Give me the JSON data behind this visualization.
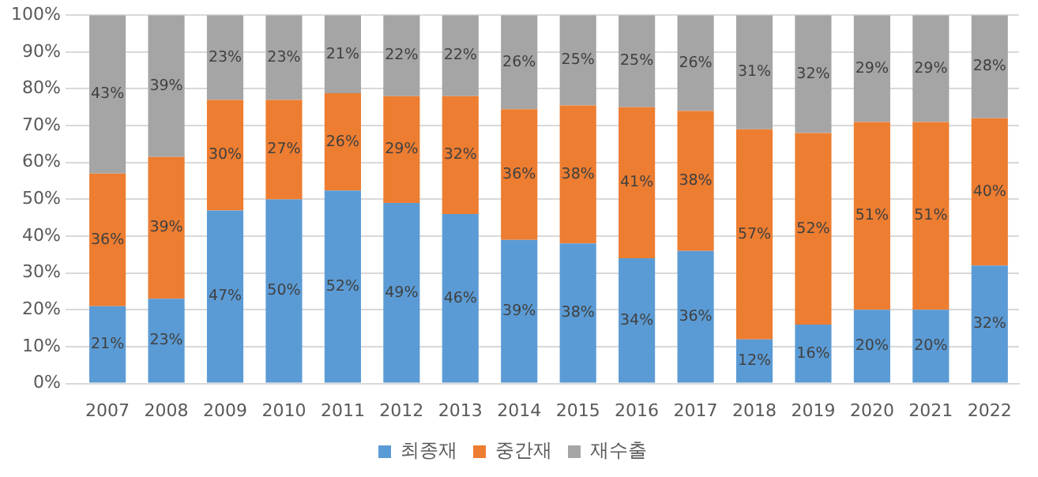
{
  "chart_data": {
    "type": "bar",
    "stacked": true,
    "categories": [
      "2007",
      "2008",
      "2009",
      "2010",
      "2011",
      "2012",
      "2013",
      "2014",
      "2015",
      "2016",
      "2017",
      "2018",
      "2019",
      "2020",
      "2021",
      "2022"
    ],
    "series": [
      {
        "name": "최종재",
        "color": "#5b9bd5",
        "values": [
          21,
          23,
          47,
          50,
          52.4,
          49,
          46,
          39,
          38,
          34,
          36,
          12,
          16,
          20,
          20,
          32
        ],
        "value_labels": [
          "21%",
          "23%",
          "47%",
          "50%",
          "52%",
          "49%",
          "46%",
          "39%",
          "38%",
          "34%",
          "36%",
          "12%",
          "16%",
          "20%",
          "20%",
          "32%"
        ]
      },
      {
        "name": "중간재",
        "color": "#ed7d31",
        "values": [
          36,
          38.5,
          30,
          27,
          26.4,
          29,
          32,
          35.5,
          37.5,
          41,
          38,
          57,
          52,
          51,
          51,
          40
        ],
        "value_labels": [
          "36%",
          "39%",
          "30%",
          "27%",
          "26%",
          "29%",
          "32%",
          "36%",
          "38%",
          "41%",
          "38%",
          "57%",
          "52%",
          "51%",
          "51%",
          "40%"
        ]
      },
      {
        "name": "재수출",
        "color": "#a5a5a5",
        "values": [
          43,
          38.5,
          23,
          23,
          21.2,
          22,
          22,
          25.5,
          24.5,
          25,
          26,
          31,
          32,
          29,
          29,
          28
        ],
        "value_labels": [
          "43%",
          "39%",
          "23%",
          "23%",
          "21%",
          "22%",
          "22%",
          "26%",
          "25%",
          "25%",
          "26%",
          "31%",
          "32%",
          "29%",
          "29%",
          "28%"
        ]
      }
    ],
    "ylim": [
      0,
      100
    ],
    "yticks": [
      {
        "value": 0,
        "label": "0%"
      },
      {
        "value": 10,
        "label": "10%"
      },
      {
        "value": 20,
        "label": "20%"
      },
      {
        "value": 30,
        "label": "30%"
      },
      {
        "value": 40,
        "label": "40%"
      },
      {
        "value": 50,
        "label": "50%"
      },
      {
        "value": 60,
        "label": "60%"
      },
      {
        "value": 70,
        "label": "70%"
      },
      {
        "value": 80,
        "label": "80%"
      },
      {
        "value": 90,
        "label": "90%"
      },
      {
        "value": 100,
        "label": "100%"
      }
    ],
    "grid": "y",
    "legend": "bottom"
  }
}
